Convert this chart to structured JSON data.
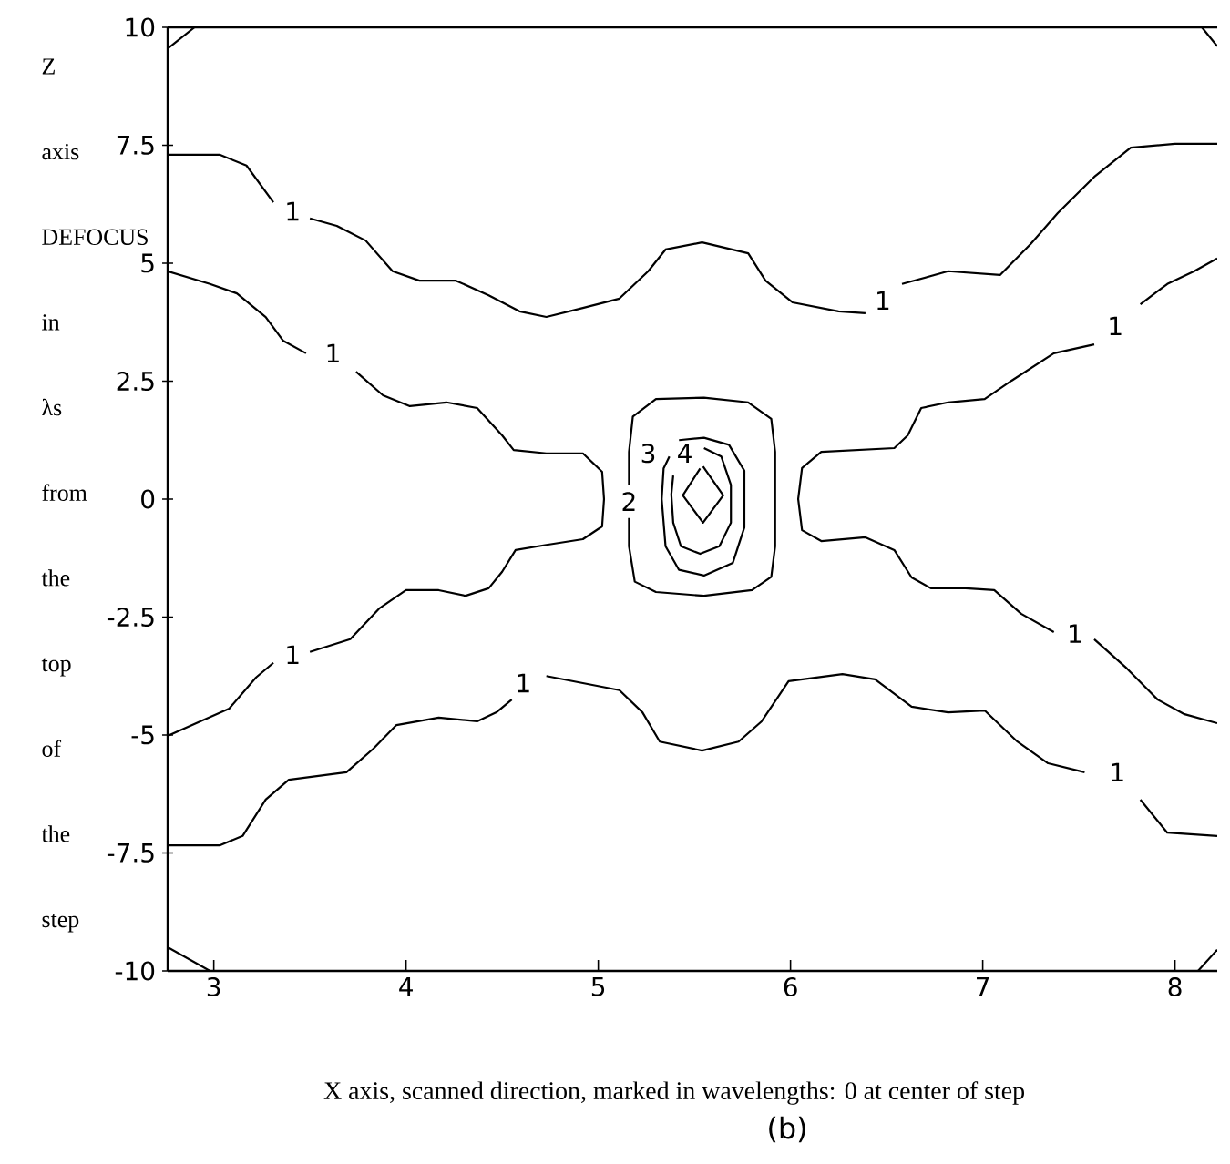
{
  "chart_data": {
    "type": "line",
    "xlabel": "X axis, scanned direction, marked in wavelengths: 0 at center  of step",
    "ylabel": "Z axis DEFOCUS in λs from the top of the step",
    "xlim": [
      2.76,
      8.22
    ],
    "ylim": [
      -10,
      10
    ],
    "xticks": [
      3,
      4,
      5,
      6,
      7,
      8
    ],
    "yticks": [
      -10,
      -7.5,
      -5,
      -2.5,
      0,
      2.5,
      5,
      7.5,
      10
    ],
    "grid": false,
    "marker": "none",
    "line_style": "solid",
    "series": [
      {
        "color": "#000000",
        "x": [
          2.76,
          3.03,
          3.17,
          3.31,
          3.41,
          3.5,
          3.64,
          3.79,
          3.93,
          4.07,
          4.26,
          4.43,
          4.59,
          4.73,
          4.92,
          5.11,
          5.26,
          5.35,
          5.54,
          5.78,
          5.87,
          6.01,
          6.25,
          6.39,
          6.48,
          6.58,
          6.82,
          7.09,
          7.25,
          7.39,
          7.58,
          7.77,
          8.0,
          8.22
        ],
        "values": [
          7.3,
          7.3,
          7.07,
          6.29,
          null,
          5.95,
          5.79,
          5.48,
          4.83,
          4.63,
          4.63,
          4.32,
          3.98,
          3.86,
          4.05,
          4.25,
          4.83,
          5.29,
          5.44,
          5.21,
          4.63,
          4.17,
          3.98,
          3.94,
          null,
          4.56,
          4.83,
          4.75,
          5.41,
          6.06,
          6.83,
          7.45,
          7.53,
          7.53
        ]
      },
      {
        "color": "#000000",
        "x": [
          2.76,
          2.98,
          3.12,
          3.27,
          3.36,
          3.48,
          3.62,
          3.74,
          3.88,
          4.02,
          4.21,
          4.37,
          4.5,
          4.56,
          4.73,
          4.92,
          5.02,
          5.03,
          5.02,
          4.92,
          4.73,
          4.57,
          4.5,
          4.43,
          4.31,
          4.17,
          4.0,
          3.86,
          3.71,
          3.5,
          3.41,
          3.31,
          3.22,
          3.08,
          2.93,
          2.76
        ],
        "values": [
          4.83,
          4.56,
          4.36,
          3.86,
          3.36,
          3.09,
          null,
          2.7,
          2.2,
          1.97,
          2.05,
          1.93,
          1.35,
          1.04,
          0.97,
          0.97,
          0.58,
          0.0,
          -0.58,
          -0.85,
          -0.97,
          -1.08,
          -1.54,
          -1.89,
          -2.05,
          -1.93,
          -1.93,
          -2.32,
          -2.97,
          -3.24,
          null,
          -3.47,
          -3.78,
          -4.44,
          -4.71,
          -5.02
        ]
      },
      {
        "color": "#000000",
        "x": [
          8.22,
          8.1,
          7.96,
          7.82,
          7.69,
          7.58,
          7.37,
          7.15,
          7.01,
          6.82,
          6.68,
          6.61,
          6.54,
          6.16,
          6.06,
          6.04,
          6.06,
          6.16,
          6.39,
          6.54,
          6.63,
          6.73,
          6.91,
          7.06,
          7.2,
          7.37,
          7.48,
          7.58,
          7.75,
          7.91,
          8.05,
          8.22
        ],
        "values": [
          5.1,
          4.83,
          4.56,
          4.13,
          null,
          3.28,
          3.09,
          2.51,
          2.12,
          2.05,
          1.93,
          1.35,
          1.08,
          1.0,
          0.66,
          0.0,
          -0.66,
          -0.89,
          -0.81,
          -1.08,
          -1.66,
          -1.89,
          -1.89,
          -1.93,
          -2.43,
          -2.82,
          null,
          -2.97,
          -3.59,
          -4.25,
          -4.56,
          -4.75
        ]
      },
      {
        "color": "#000000",
        "x": [
          2.76,
          3.03,
          3.15,
          3.27,
          3.39,
          3.69,
          3.83,
          3.95,
          4.17,
          4.37,
          4.47,
          4.55,
          4.61,
          4.73,
          4.92,
          5.11,
          5.23,
          5.32,
          5.54,
          5.73,
          5.85,
          5.99,
          6.27,
          6.44,
          6.63,
          6.82,
          7.01,
          7.18,
          7.34,
          7.53,
          7.7,
          7.82,
          7.96,
          8.22
        ],
        "values": [
          -7.34,
          -7.34,
          -7.14,
          -6.37,
          -5.95,
          -5.79,
          -5.29,
          -4.79,
          -4.63,
          -4.71,
          -4.52,
          -4.25,
          null,
          -3.75,
          -3.9,
          -4.05,
          -4.52,
          -5.14,
          -5.33,
          -5.14,
          -4.71,
          -3.86,
          -3.71,
          -3.82,
          -4.4,
          -4.52,
          -4.48,
          -5.14,
          -5.6,
          -5.79,
          null,
          -6.37,
          -7.07,
          -7.14
        ]
      },
      {
        "color": "#000000",
        "x": [
          5.16,
          5.16,
          5.19,
          5.3,
          5.55,
          5.8,
          5.9,
          5.92,
          5.92,
          5.9,
          5.78,
          5.55,
          5.3,
          5.18,
          5.16,
          5.16
        ],
        "values": [
          -0.4,
          -1.0,
          -1.75,
          -1.97,
          -2.05,
          -1.93,
          -1.65,
          -1.0,
          1.0,
          1.7,
          2.05,
          2.15,
          2.12,
          1.75,
          1.0,
          0.3
        ]
      },
      {
        "color": "#000000",
        "x": [
          5.42,
          5.55,
          5.68,
          5.76,
          5.76,
          5.7,
          5.55,
          5.42,
          5.35,
          5.33,
          5.34,
          5.37
        ],
        "values": [
          1.25,
          1.3,
          1.15,
          0.6,
          -0.6,
          -1.35,
          -1.62,
          -1.5,
          -1.0,
          0.0,
          0.65,
          0.9
        ]
      },
      {
        "color": "#000000",
        "x": [
          5.55,
          5.64,
          5.69,
          5.69,
          5.63,
          5.53,
          5.43,
          5.39,
          5.38,
          5.39
        ],
        "values": [
          1.08,
          0.9,
          0.3,
          -0.5,
          -1.0,
          -1.16,
          -1.0,
          -0.5,
          0.1,
          0.5
        ]
      },
      {
        "color": "#000000",
        "x": [
          5.545,
          5.65,
          5.545,
          5.44,
          5.53
        ],
        "values": [
          0.69,
          0.08,
          -0.5,
          0.08,
          0.65
        ]
      },
      {
        "color": "#000000",
        "x": [
          2.76,
          2.9
        ],
        "values": [
          9.55,
          10
        ]
      },
      {
        "color": "#000000",
        "x": [
          2.76,
          2.98
        ],
        "values": [
          -9.5,
          -10
        ]
      },
      {
        "color": "#000000",
        "x": [
          8.14,
          8.22
        ],
        "values": [
          10,
          9.6
        ]
      },
      {
        "color": "#000000",
        "x": [
          8.12,
          8.22
        ],
        "values": [
          -10,
          -9.55
        ]
      }
    ],
    "annotations": [
      "1",
      "1",
      "1",
      "1",
      "1",
      "1",
      "1",
      "1",
      "2",
      "3",
      "4",
      "(b)"
    ]
  }
}
